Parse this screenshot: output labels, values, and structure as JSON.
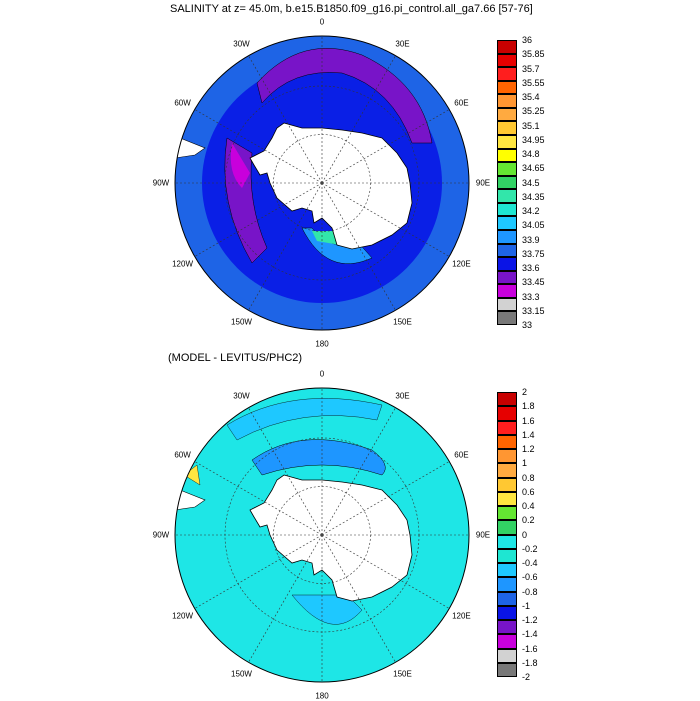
{
  "panels": [
    {
      "title": "SALINITY at z=  45.0m, b.e15.B1850.f09_g16.pi_control.all_ga7.66 [57-76]",
      "ocean_color": "#0a1fe6",
      "longitude_labels": [
        "0",
        "30E",
        "60E",
        "90E",
        "120E",
        "150E",
        "180",
        "150W",
        "120W",
        "90W",
        "60W",
        "30W"
      ],
      "colorbar": {
        "labels": [
          "36",
          "35.85",
          "35.7",
          "35.55",
          "35.4",
          "35.25",
          "35.1",
          "34.95",
          "34.8",
          "34.65",
          "34.5",
          "34.35",
          "34.2",
          "34.05",
          "33.9",
          "33.75",
          "33.6",
          "33.45",
          "33.3",
          "33.15",
          "33"
        ],
        "colors": [
          "#c80000",
          "#e60000",
          "#ff1e1e",
          "#ff6400",
          "#ff9632",
          "#ffaa40",
          "#ffc832",
          "#ffe640",
          "#ffff00",
          "#64e632",
          "#32d264",
          "#32e6aa",
          "#1ee6d2",
          "#1ec8ff",
          "#1e96ff",
          "#1e64e6",
          "#0a14e6",
          "#7814c8",
          "#c800dc",
          "#d2d2d2",
          "#787878"
        ]
      }
    },
    {
      "title": "(MODEL - LEVITUS/PHC2)",
      "ocean_color": "#1ee6e6",
      "longitude_labels": [
        "0",
        "30E",
        "60E",
        "90E",
        "120E",
        "150E",
        "180",
        "150W",
        "120W",
        "90W",
        "60W",
        "30W"
      ],
      "colorbar": {
        "labels": [
          "2",
          "1.8",
          "1.6",
          "1.4",
          "1.2",
          "1",
          "0.8",
          "0.6",
          "0.4",
          "0.2",
          "0",
          "-0.2",
          "-0.4",
          "-0.6",
          "-0.8",
          "-1",
          "-1.2",
          "-1.4",
          "-1.6",
          "-1.8",
          "-2"
        ],
        "colors": [
          "#c80000",
          "#e60000",
          "#ff1e1e",
          "#ff6400",
          "#ff9632",
          "#ffaa40",
          "#ffc832",
          "#ffe640",
          "#64e632",
          "#32d264",
          "#1ee6e6",
          "#1ee6d2",
          "#1ec8ff",
          "#1e96ff",
          "#1e64e6",
          "#0a14e6",
          "#7814c8",
          "#c800dc",
          "#d2d2d2",
          "#787878"
        ]
      }
    }
  ]
}
